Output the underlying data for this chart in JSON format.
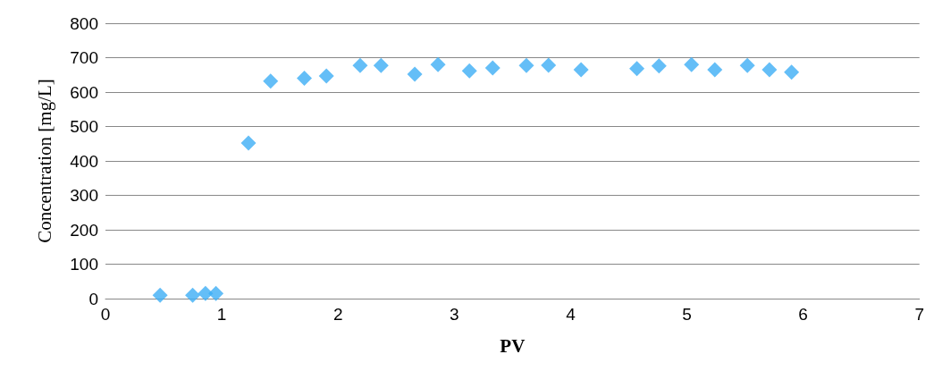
{
  "chart_data": {
    "type": "scatter",
    "xlabel": "PV",
    "ylabel": "Concentration [mg/L]",
    "x": [
      0.47,
      0.75,
      0.86,
      0.95,
      1.23,
      1.42,
      1.71,
      1.9,
      2.19,
      2.37,
      2.66,
      2.86,
      3.13,
      3.33,
      3.62,
      3.81,
      4.09,
      4.57,
      4.76,
      5.04,
      5.24,
      5.52,
      5.71,
      5.9
    ],
    "values": [
      10,
      10,
      15,
      15,
      452,
      632,
      640,
      647,
      677,
      677,
      652,
      680,
      662,
      670,
      677,
      678,
      665,
      668,
      676,
      680,
      665,
      677,
      665,
      658
    ],
    "color": "#3daef5",
    "marker": "diamond",
    "grid": "y",
    "xlim": [
      0,
      7
    ],
    "xticks": [
      0,
      1,
      2,
      3,
      4,
      5,
      6,
      7
    ],
    "ylim": [
      0,
      800
    ],
    "yticks": [
      0,
      100,
      200,
      300,
      400,
      500,
      600,
      700,
      800
    ]
  }
}
